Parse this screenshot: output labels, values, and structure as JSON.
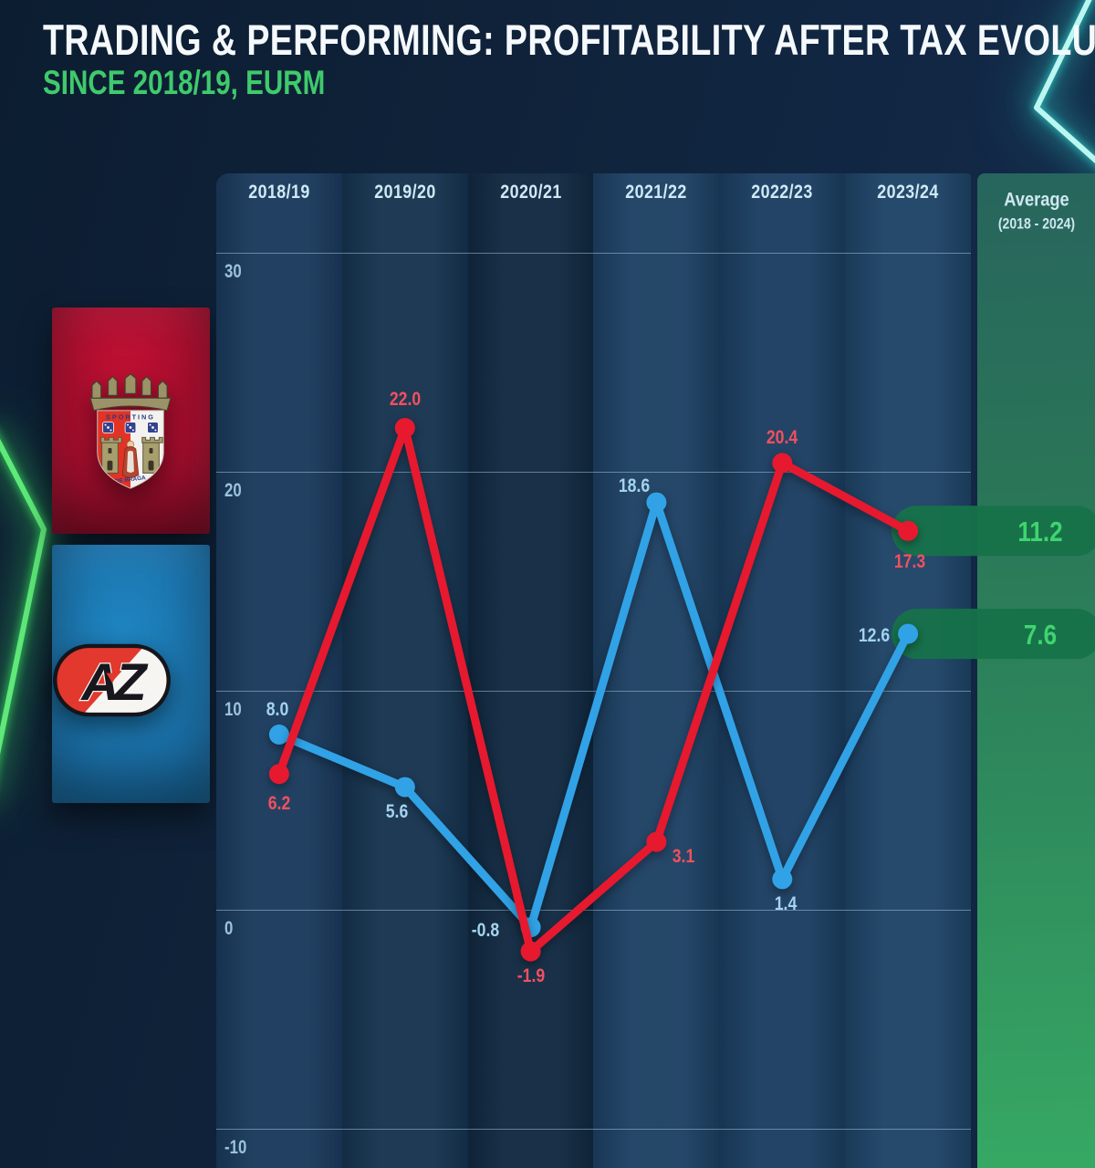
{
  "header": {
    "title": "TRADING & PERFORMING: PROFITABILITY AFTER TAX EVOLUTION",
    "subtitle": "SINCE 2018/19, EURM"
  },
  "legend": {
    "braga_icon": "braga-crest-icon",
    "az_icon": "az-logo-icon"
  },
  "colors": {
    "accent_green": "#3fca6c",
    "pill_green": "#16724a",
    "grid": "#accfe3",
    "braga_red": "#e6192f",
    "az_blue": "#31a2e6"
  },
  "chart_data": {
    "type": "line",
    "title": "TRADING & PERFORMING: PROFITABILITY AFTER TAX EVOLUTION",
    "subtitle": "SINCE 2018/19, EURM",
    "categories": [
      "2018/19",
      "2019/20",
      "2020/21",
      "2021/22",
      "2022/23",
      "2023/24"
    ],
    "average_label": "Average",
    "average_sublabel": "(2018 - 2024)",
    "ylabel": "EURM",
    "ylim": [
      -10,
      30
    ],
    "yticks": [
      30,
      20,
      10,
      0,
      -10
    ],
    "ytick_labels": [
      "30",
      "20",
      "10",
      "0",
      "-10"
    ],
    "grid": true,
    "legend_position": "left-tiles",
    "series": [
      {
        "key": "braga",
        "name": "SC Braga",
        "color": "#e6192f",
        "values": [
          6.2,
          22.0,
          -1.9,
          3.1,
          20.4,
          17.3
        ],
        "average": 11.2
      },
      {
        "key": "az",
        "name": "AZ Alkmaar",
        "color": "#31a2e6",
        "values": [
          8.0,
          5.6,
          -0.8,
          18.6,
          1.4,
          12.6
        ],
        "average": 7.6
      }
    ]
  }
}
